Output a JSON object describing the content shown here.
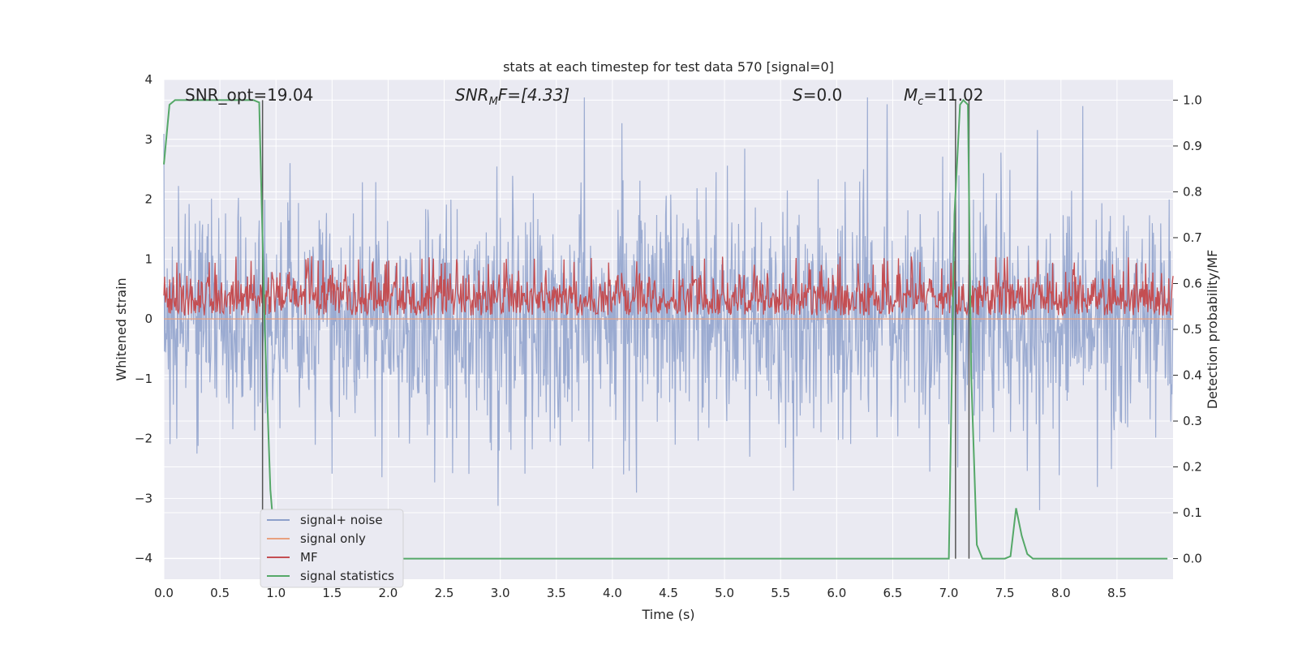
{
  "chart_data": {
    "type": "line",
    "title": "stats at each timestep for test data 570 [signal=0]",
    "xlabel": "Time (s)",
    "ylabel": "Whitened strain",
    "y2label": "Detection probability/MF",
    "xlim": [
      0.0,
      9.0
    ],
    "ylim": [
      -4.35,
      4.0
    ],
    "y2lim": [
      -0.045,
      1.045
    ],
    "xticks": [
      "0.0",
      "0.5",
      "1.0",
      "1.5",
      "2.0",
      "2.5",
      "3.0",
      "3.5",
      "4.0",
      "4.5",
      "5.0",
      "5.5",
      "6.0",
      "6.5",
      "7.0",
      "7.5",
      "8.0",
      "8.5"
    ],
    "xtick_values": [
      0.0,
      0.5,
      1.0,
      1.5,
      2.0,
      2.5,
      3.0,
      3.5,
      4.0,
      4.5,
      5.0,
      5.5,
      6.0,
      6.5,
      7.0,
      7.5,
      8.0,
      8.5
    ],
    "yticks": [
      "4",
      "3",
      "2",
      "1",
      "0",
      "−1",
      "−2",
      "−3",
      "−4"
    ],
    "ytick_values": [
      4,
      3,
      2,
      1,
      0,
      -1,
      -2,
      -3,
      -4
    ],
    "y2ticks": [
      "1.0",
      "0.9",
      "0.8",
      "0.7",
      "0.6",
      "0.5",
      "0.4",
      "0.3",
      "0.2",
      "0.1",
      "0.0"
    ],
    "y2tick_values": [
      1.0,
      0.9,
      0.8,
      0.7,
      0.6,
      0.5,
      0.4,
      0.3,
      0.2,
      0.1,
      0.0
    ],
    "annotations": {
      "snr_opt": "SNR_opt=19.04",
      "snr_mf_main": "SNR",
      "snr_mf_sub": "M",
      "snr_mf_rest": "F=[4.33]",
      "s_main": "S",
      "s_rest": "=0.0",
      "mc_main": "M",
      "mc_sub": "c",
      "mc_rest": "=11.02"
    },
    "vertical_lines_x": [
      0.88,
      7.06,
      7.18
    ],
    "series": [
      {
        "name": "signal+ noise",
        "color": "#8da0cb",
        "axis": "left",
        "description": "whitened noise, approx. ±2 std band, peaks to ±3.5",
        "band": {
          "center": 0.0,
          "std": 0.95,
          "peak_max": 3.7,
          "peak_min": -3.95
        }
      },
      {
        "name": "signal only",
        "color": "#e8a07f",
        "axis": "left",
        "values_constant": 0.0
      },
      {
        "name": "MF",
        "color": "#c44e52",
        "axis": "right",
        "band": {
          "low": 0.53,
          "high": 0.64,
          "peak": 0.66
        }
      },
      {
        "name": "signal statistics",
        "color": "#55a868",
        "axis": "right",
        "x": [
          0.0,
          0.05,
          0.1,
          0.2,
          0.4,
          0.6,
          0.8,
          0.85,
          0.9,
          0.95,
          1.0,
          1.05,
          2.0,
          3.0,
          4.0,
          5.0,
          6.0,
          7.0,
          7.05,
          7.1,
          7.13,
          7.17,
          7.2,
          7.25,
          7.3,
          7.5,
          7.55,
          7.6,
          7.65,
          7.7,
          7.75,
          8.0,
          8.5,
          8.95
        ],
        "y": [
          0.86,
          0.99,
          1.0,
          1.0,
          1.0,
          1.0,
          1.0,
          0.995,
          0.5,
          0.15,
          0.0,
          0.0,
          0.0,
          0.0,
          0.0,
          0.0,
          0.0,
          0.0,
          0.75,
          0.99,
          1.0,
          0.99,
          0.4,
          0.03,
          0.0,
          0.0,
          0.005,
          0.11,
          0.05,
          0.01,
          0.0,
          0.0,
          0.0,
          0.0
        ]
      }
    ],
    "legend": {
      "placement": "lower-left",
      "entries": [
        {
          "label": "signal+ noise",
          "color": "#8da0cb"
        },
        {
          "label": "signal only",
          "color": "#e8a07f"
        },
        {
          "label": "MF",
          "color": "#c44e52"
        },
        {
          "label": "signal statistics",
          "color": "#55a868"
        }
      ]
    },
    "colors": {
      "background": "#eaeaf2",
      "grid": "#ffffff",
      "vline": "#555555"
    }
  }
}
